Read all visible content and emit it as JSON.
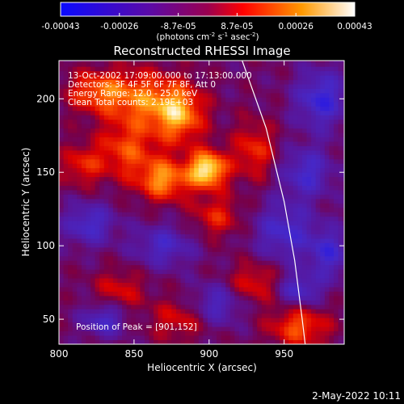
{
  "colorbar": {
    "tick_labels": [
      "-0.00043",
      "-0.00026",
      "-8.7e-05",
      "8.7e-05",
      "0.00026",
      "0.00043"
    ],
    "units_main": "(photons cm",
    "units_sup1": "-2",
    "units_mid": " s",
    "units_sup2": "-1",
    "units_tail": " asec",
    "units_sup3": "-2",
    "units_close": ")",
    "gradient_colors": [
      "#0a0aff",
      "#6a00c8",
      "#ff0000",
      "#ff9900",
      "#ffffff"
    ]
  },
  "chart_data": {
    "type": "heatmap",
    "title": "Reconstructed RHESSI Image",
    "xlabel": "Heliocentric X (arcsec)",
    "ylabel": "Heliocentric Y (arcsec)",
    "xlim": [
      800,
      990
    ],
    "ylim": [
      33,
      226
    ],
    "xticks": [
      800,
      850,
      900,
      950
    ],
    "yticks": [
      50,
      100,
      150,
      200
    ],
    "info_lines": [
      "13-Oct-2002 17:09:00.000 to 17:13:00.000",
      "Detectors: 3F 4F 5F 6F 7F 8F, Att 0",
      "Energy Range: 12.0 - 25.0 keV",
      "Clean     Total counts: 2.19E+03"
    ],
    "peak_label": "Position of Peak = [901,152]",
    "peak": [
      901,
      152
    ],
    "limb": [
      [
        922,
        226
      ],
      [
        938,
        180
      ],
      [
        950,
        130
      ],
      [
        957,
        90
      ],
      [
        962,
        50
      ],
      [
        964,
        33
      ]
    ],
    "hotspots": [
      {
        "x": 899,
        "y": 152,
        "level": 1.0,
        "sx": 9,
        "sy": 9
      },
      {
        "x": 880,
        "y": 190,
        "level": 0.75,
        "sx": 12,
        "sy": 14
      },
      {
        "x": 870,
        "y": 145,
        "level": 0.7,
        "sx": 12,
        "sy": 10
      },
      {
        "x": 855,
        "y": 200,
        "level": 0.55,
        "sx": 16,
        "sy": 14
      },
      {
        "x": 825,
        "y": 205,
        "level": 0.55,
        "sx": 14,
        "sy": 10
      },
      {
        "x": 845,
        "y": 165,
        "level": 0.5,
        "sx": 14,
        "sy": 14
      },
      {
        "x": 815,
        "y": 155,
        "level": 0.4,
        "sx": 10,
        "sy": 10
      },
      {
        "x": 905,
        "y": 120,
        "level": 0.4,
        "sx": 12,
        "sy": 10
      },
      {
        "x": 930,
        "y": 165,
        "level": 0.45,
        "sx": 10,
        "sy": 14
      },
      {
        "x": 960,
        "y": 45,
        "level": 0.55,
        "sx": 14,
        "sy": 10
      },
      {
        "x": 840,
        "y": 70,
        "level": 0.35,
        "sx": 12,
        "sy": 10
      },
      {
        "x": 930,
        "y": 75,
        "level": 0.4,
        "sx": 12,
        "sy": 10
      },
      {
        "x": 880,
        "y": 50,
        "level": 0.35,
        "sx": 14,
        "sy": 10
      }
    ],
    "coldspots": [
      {
        "x": 975,
        "y": 200,
        "level": -0.6,
        "sx": 12,
        "sy": 14
      },
      {
        "x": 965,
        "y": 150,
        "level": -0.5,
        "sx": 12,
        "sy": 12
      },
      {
        "x": 820,
        "y": 115,
        "level": -0.5,
        "sx": 12,
        "sy": 10
      },
      {
        "x": 870,
        "y": 100,
        "level": -0.45,
        "sx": 14,
        "sy": 10
      },
      {
        "x": 950,
        "y": 110,
        "level": -0.5,
        "sx": 14,
        "sy": 14
      },
      {
        "x": 830,
        "y": 50,
        "level": -0.5,
        "sx": 10,
        "sy": 8
      },
      {
        "x": 905,
        "y": 60,
        "level": -0.45,
        "sx": 12,
        "sy": 10
      },
      {
        "x": 960,
        "y": 70,
        "level": -0.5,
        "sx": 10,
        "sy": 8
      },
      {
        "x": 980,
        "y": 95,
        "level": -0.5,
        "sx": 10,
        "sy": 12
      }
    ]
  },
  "footer": {
    "timestamp": "2-May-2022 10:11"
  }
}
